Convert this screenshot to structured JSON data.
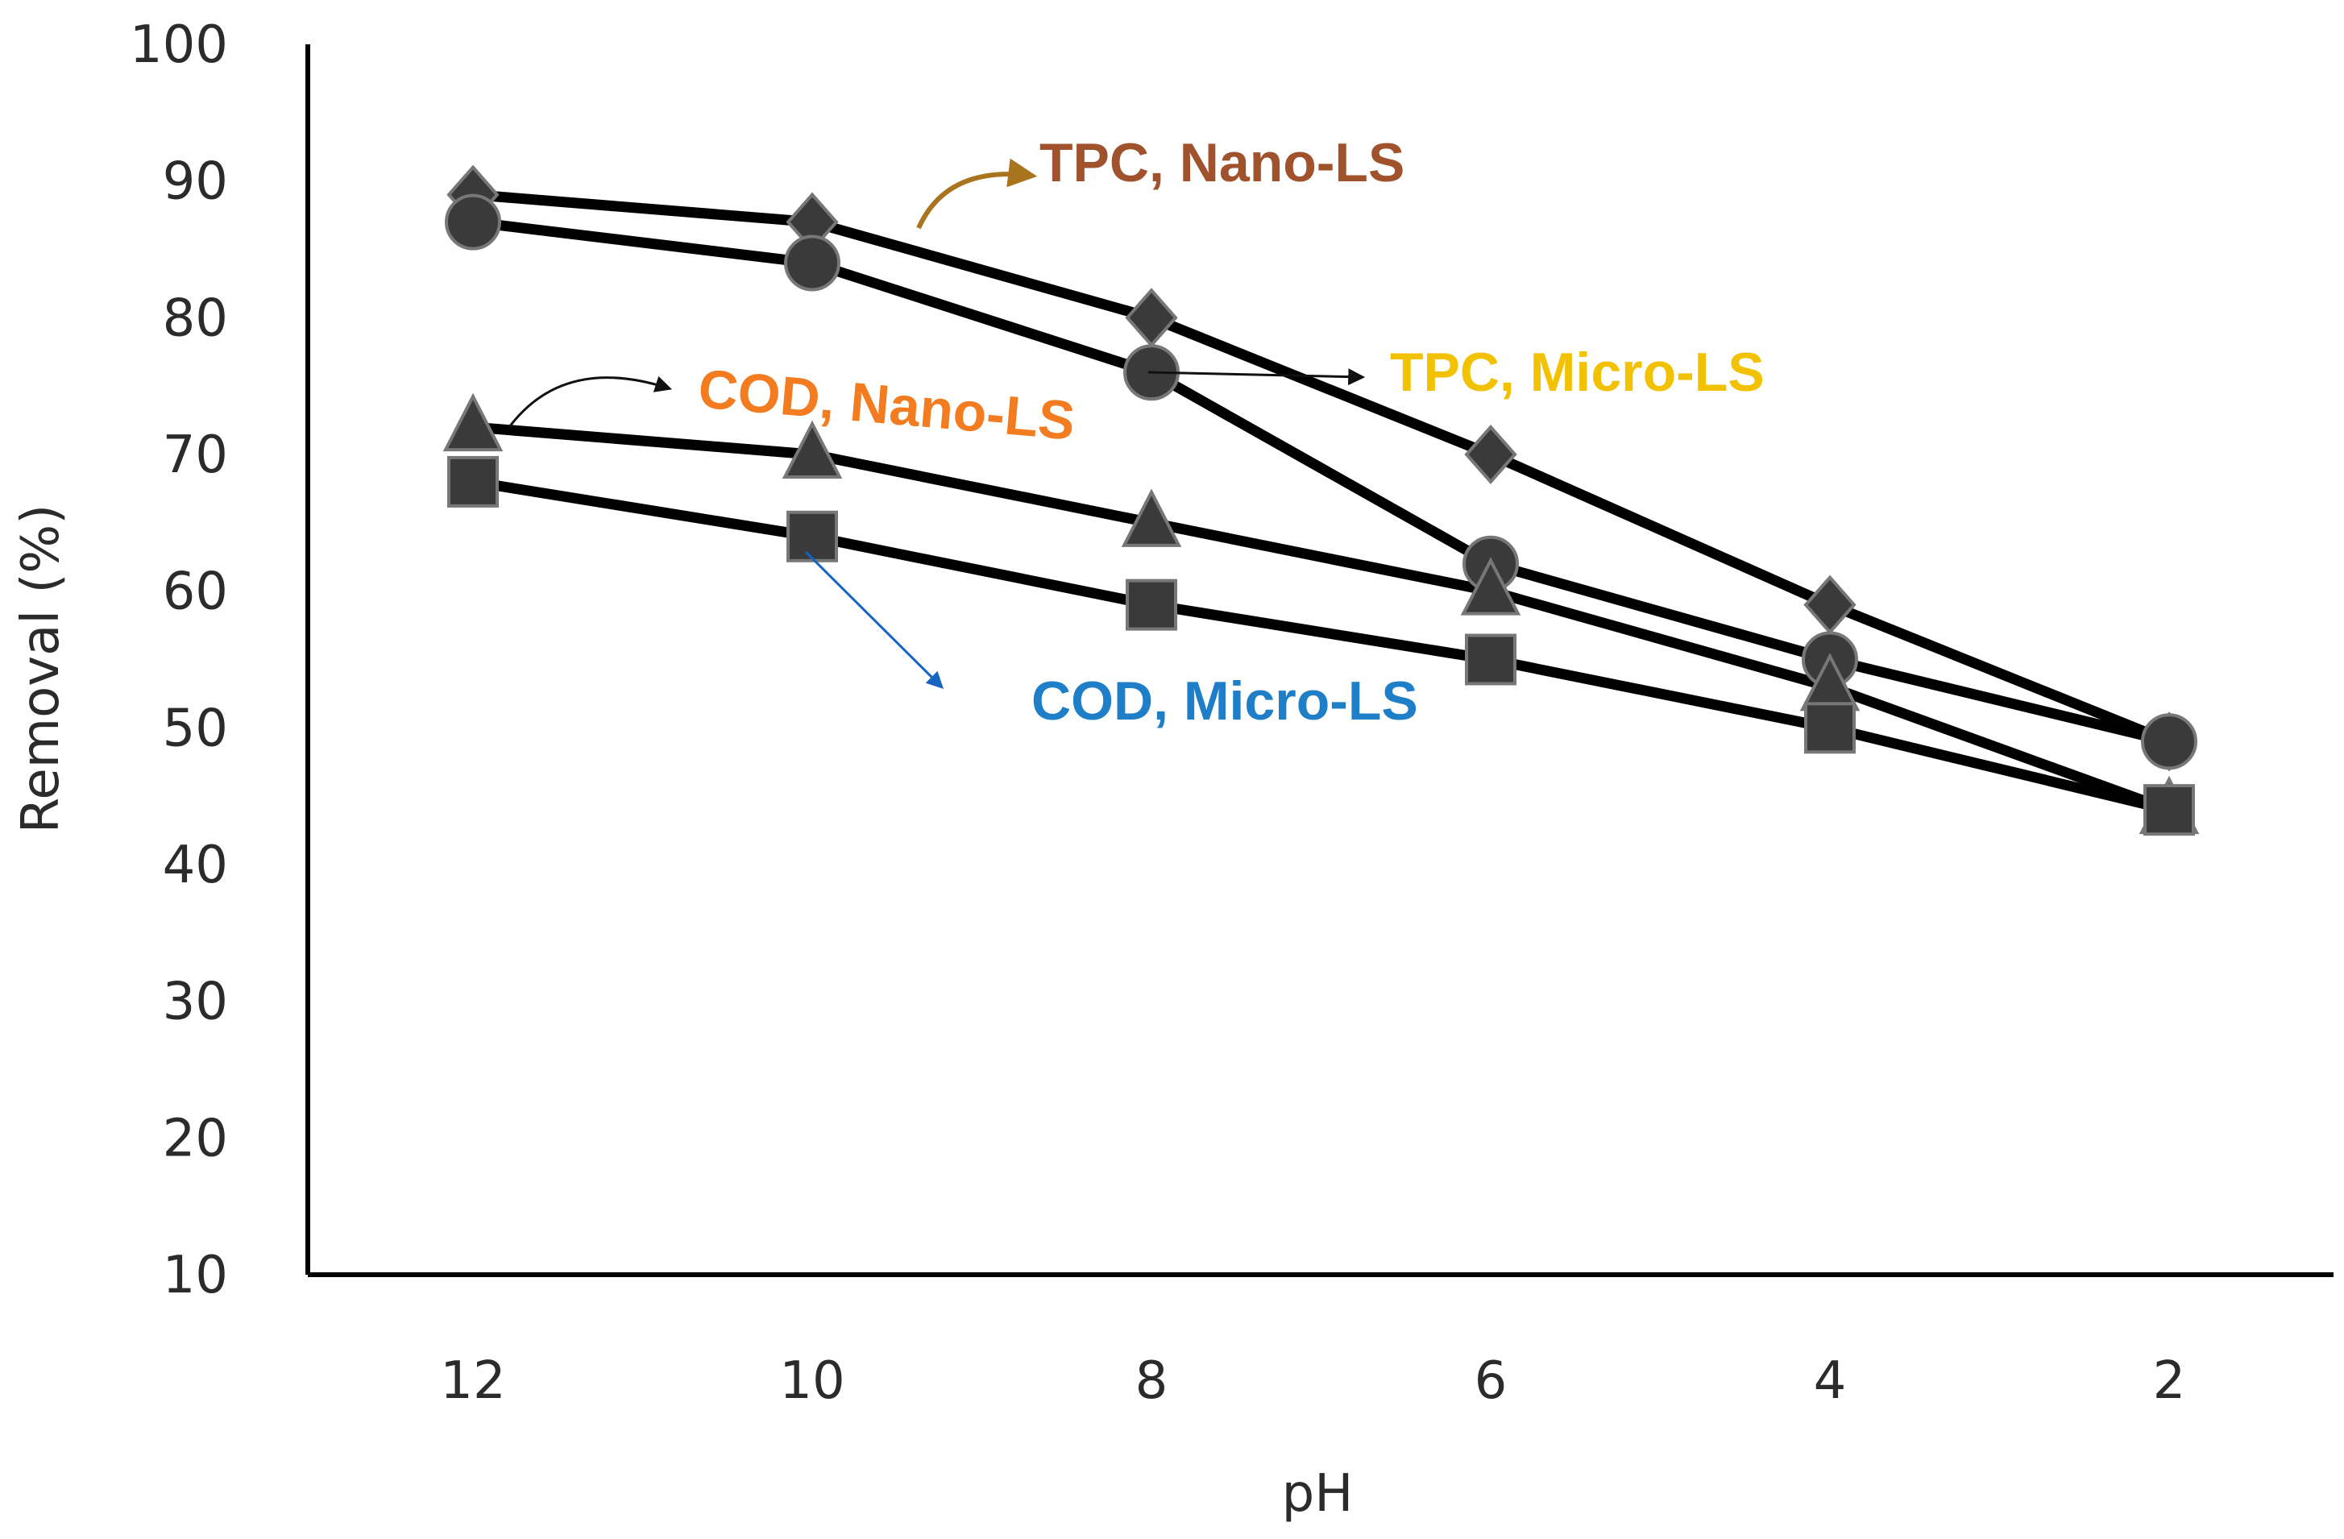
{
  "chart_data": {
    "type": "line",
    "title": "",
    "xlabel": "pH",
    "ylabel": "Removal (%)",
    "categories": [
      "12",
      "10",
      "8",
      "6",
      "4",
      "2"
    ],
    "ylim": [
      10,
      100
    ],
    "yticks": [
      "10",
      "20",
      "30",
      "40",
      "50",
      "60",
      "70",
      "80",
      "90",
      "100"
    ],
    "grid": false,
    "series": [
      {
        "name": "TPC, Nano-LS",
        "marker": "diamond",
        "values": [
          89,
          87,
          80,
          70,
          59,
          49
        ]
      },
      {
        "name": "TPC, Micro-LS",
        "marker": "circle",
        "values": [
          87,
          84,
          76,
          62,
          55,
          49
        ]
      },
      {
        "name": "COD, Nano-LS",
        "marker": "triangle",
        "values": [
          72,
          70,
          65,
          60,
          53,
          44
        ]
      },
      {
        "name": "COD, Micro-LS",
        "marker": "square",
        "values": [
          68,
          64,
          59,
          55,
          50,
          44
        ]
      }
    ],
    "annotations": [
      {
        "text": "TPC, Nano-LS",
        "color": "#A0522D",
        "arrow_color": "#A8741E"
      },
      {
        "text": "TPC, Micro-LS",
        "color": "#F2C200",
        "arrow_color": "#111111"
      },
      {
        "text": "COD, Nano-LS",
        "color": "#F47C20",
        "arrow_color": "#111111"
      },
      {
        "text": "COD, Micro-LS",
        "color": "#1E7FC8",
        "arrow_color": "#1565C0"
      }
    ]
  }
}
